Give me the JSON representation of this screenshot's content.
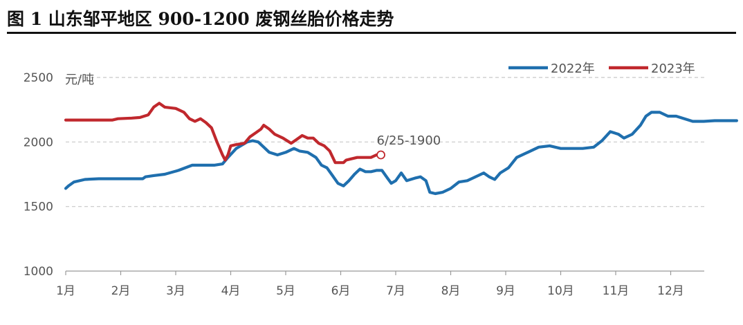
{
  "title": "图 1 山东邹平地区 900-1200 废钢丝胎价格走势",
  "chart_data": {
    "type": "line",
    "ylabel": "元/吨",
    "ylim": [
      1000,
      2500
    ],
    "yticks": [
      1000,
      1500,
      2000,
      2500
    ],
    "categories": [
      "1月",
      "2月",
      "3月",
      "4月",
      "5月",
      "6月",
      "7月",
      "8月",
      "9月",
      "10月",
      "11月",
      "12月"
    ],
    "grid": true,
    "legend_position": "top-right",
    "annotation": {
      "text": "6/25-1900",
      "x": 5.73,
      "y": 1900,
      "series": "2023年"
    },
    "series": [
      {
        "name": "2022年",
        "color": "#1f6fae",
        "points": [
          [
            0.0,
            1640
          ],
          [
            0.05,
            1660
          ],
          [
            0.15,
            1690
          ],
          [
            0.35,
            1710
          ],
          [
            0.6,
            1715
          ],
          [
            0.9,
            1715
          ],
          [
            1.4,
            1715
          ],
          [
            1.45,
            1730
          ],
          [
            1.6,
            1740
          ],
          [
            1.8,
            1750
          ],
          [
            2.05,
            1780
          ],
          [
            2.3,
            1820
          ],
          [
            2.5,
            1820
          ],
          [
            2.7,
            1820
          ],
          [
            2.85,
            1830
          ],
          [
            2.95,
            1880
          ],
          [
            3.1,
            1950
          ],
          [
            3.3,
            2000
          ],
          [
            3.4,
            2010
          ],
          [
            3.5,
            2000
          ],
          [
            3.7,
            1920
          ],
          [
            3.85,
            1900
          ],
          [
            4.0,
            1920
          ],
          [
            4.15,
            1950
          ],
          [
            4.25,
            1930
          ],
          [
            4.4,
            1920
          ],
          [
            4.55,
            1880
          ],
          [
            4.65,
            1820
          ],
          [
            4.75,
            1800
          ],
          [
            4.85,
            1740
          ],
          [
            4.95,
            1680
          ],
          [
            5.05,
            1660
          ],
          [
            5.15,
            1700
          ],
          [
            5.25,
            1750
          ],
          [
            5.35,
            1790
          ],
          [
            5.45,
            1770
          ],
          [
            5.55,
            1770
          ],
          [
            5.65,
            1780
          ],
          [
            5.75,
            1780
          ],
          [
            5.85,
            1720
          ],
          [
            5.92,
            1680
          ],
          [
            6.0,
            1700
          ],
          [
            6.1,
            1760
          ],
          [
            6.2,
            1700
          ],
          [
            6.35,
            1720
          ],
          [
            6.45,
            1730
          ],
          [
            6.55,
            1700
          ],
          [
            6.62,
            1610
          ],
          [
            6.72,
            1600
          ],
          [
            6.85,
            1610
          ],
          [
            7.0,
            1640
          ],
          [
            7.15,
            1690
          ],
          [
            7.3,
            1700
          ],
          [
            7.4,
            1720
          ],
          [
            7.5,
            1740
          ],
          [
            7.6,
            1760
          ],
          [
            7.7,
            1730
          ],
          [
            7.8,
            1710
          ],
          [
            7.9,
            1760
          ],
          [
            8.05,
            1800
          ],
          [
            8.2,
            1880
          ],
          [
            8.4,
            1920
          ],
          [
            8.6,
            1960
          ],
          [
            8.8,
            1970
          ],
          [
            9.0,
            1950
          ],
          [
            9.2,
            1950
          ],
          [
            9.4,
            1950
          ],
          [
            9.6,
            1960
          ],
          [
            9.75,
            2010
          ],
          [
            9.9,
            2080
          ],
          [
            10.05,
            2060
          ],
          [
            10.15,
            2030
          ],
          [
            10.3,
            2060
          ],
          [
            10.45,
            2130
          ],
          [
            10.55,
            2200
          ],
          [
            10.65,
            2230
          ],
          [
            10.8,
            2230
          ],
          [
            10.95,
            2200
          ],
          [
            11.1,
            2200
          ],
          [
            11.25,
            2180
          ],
          [
            11.4,
            2160
          ],
          [
            11.6,
            2160
          ],
          [
            11.8,
            2165
          ],
          [
            12.0,
            2165
          ],
          [
            12.2,
            2165
          ]
        ]
      },
      {
        "name": "2023年",
        "color": "#c0282d",
        "points": [
          [
            0.0,
            2170
          ],
          [
            0.5,
            2170
          ],
          [
            0.85,
            2170
          ],
          [
            0.95,
            2180
          ],
          [
            1.2,
            2185
          ],
          [
            1.35,
            2190
          ],
          [
            1.5,
            2210
          ],
          [
            1.6,
            2270
          ],
          [
            1.7,
            2300
          ],
          [
            1.8,
            2270
          ],
          [
            2.0,
            2260
          ],
          [
            2.15,
            2230
          ],
          [
            2.25,
            2180
          ],
          [
            2.35,
            2160
          ],
          [
            2.45,
            2180
          ],
          [
            2.55,
            2150
          ],
          [
            2.65,
            2110
          ],
          [
            2.75,
            2000
          ],
          [
            2.85,
            1900
          ],
          [
            2.9,
            1860
          ],
          [
            2.95,
            1900
          ],
          [
            3.0,
            1970
          ],
          [
            3.1,
            1980
          ],
          [
            3.25,
            1990
          ],
          [
            3.35,
            2040
          ],
          [
            3.45,
            2070
          ],
          [
            3.55,
            2100
          ],
          [
            3.6,
            2130
          ],
          [
            3.7,
            2100
          ],
          [
            3.8,
            2060
          ],
          [
            3.95,
            2030
          ],
          [
            4.1,
            1990
          ],
          [
            4.2,
            2020
          ],
          [
            4.3,
            2050
          ],
          [
            4.4,
            2030
          ],
          [
            4.5,
            2030
          ],
          [
            4.6,
            1990
          ],
          [
            4.7,
            1970
          ],
          [
            4.8,
            1930
          ],
          [
            4.9,
            1840
          ],
          [
            5.05,
            1840
          ],
          [
            5.1,
            1860
          ],
          [
            5.2,
            1870
          ],
          [
            5.3,
            1880
          ],
          [
            5.45,
            1880
          ],
          [
            5.55,
            1880
          ],
          [
            5.65,
            1900
          ],
          [
            5.73,
            1900
          ]
        ]
      }
    ]
  }
}
